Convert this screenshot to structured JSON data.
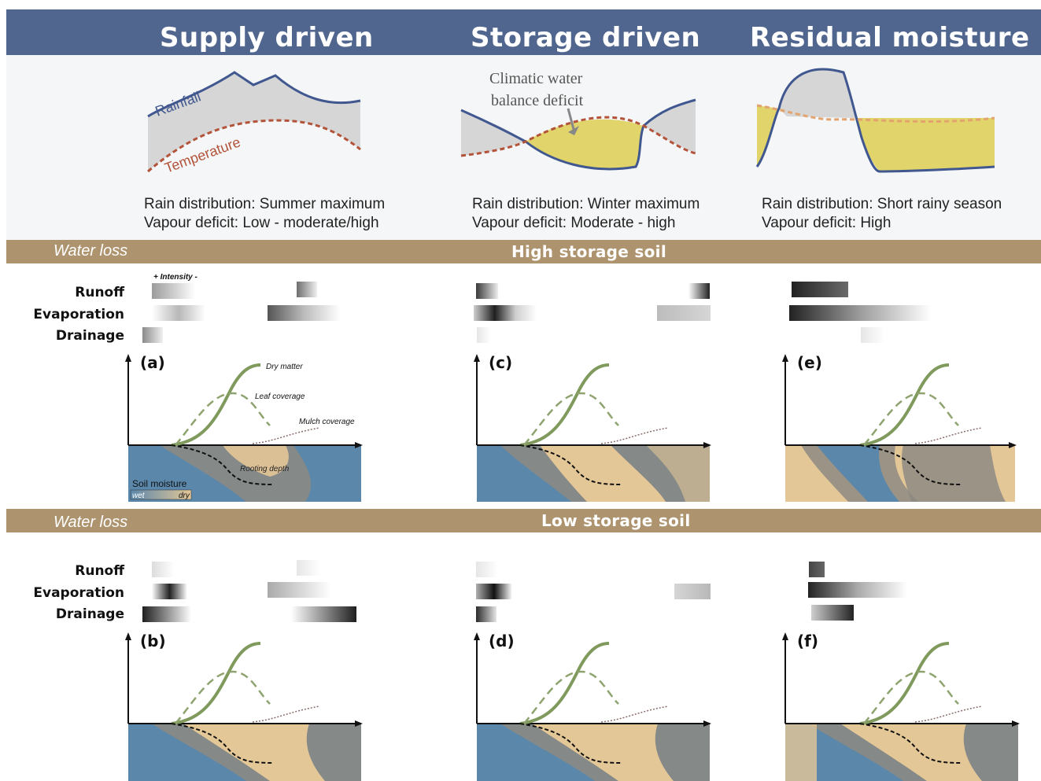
{
  "columns": [
    {
      "id": "supply",
      "title": "Supply driven",
      "rain": "Rain distribution: Summer maximum",
      "vpd": "Vapour deficit: Low - moderate/high"
    },
    {
      "id": "storage",
      "title": "Storage driven",
      "rain": "Rain distribution: Winter maximum",
      "vpd": "Vapour deficit: Moderate  - high"
    },
    {
      "id": "residual",
      "title": "Residual moisture",
      "rain": "Rain distribution: Short rainy season",
      "vpd": "Vapour deficit: High"
    }
  ],
  "climate_labels": {
    "rainfall": "Rainfall",
    "temperature": "Temperature",
    "deficit_line1": "Climatic water",
    "deficit_line2": "balance deficit"
  },
  "bands": {
    "water_loss": "Water loss",
    "high": "High storage soil",
    "low": "Low storage soil"
  },
  "loss_rows": {
    "runoff": "Runoff",
    "evaporation": "Evaporation",
    "drainage": "Drainage"
  },
  "intensity": "+ Intensity -",
  "panel_labels": [
    "(a)",
    "(c)",
    "(e)",
    "(b)",
    "(d)",
    "(f)"
  ],
  "curve_labels": {
    "dry_matter": "Dry matter",
    "leaf": "Leaf coverage",
    "mulch": "Mulch coverage",
    "rooting": "Rooting depth"
  },
  "legend": {
    "title": "Soil moisture",
    "wet": "wet",
    "dry": "dry"
  },
  "colors": {
    "header": "#50668f",
    "band": "#ad946f",
    "rainfall": "#40578f",
    "temperature": "#b2533a",
    "deficit_fill": "#e0d46a",
    "climate_fill": "#d6d6d6",
    "soil_wet": "#5b87aa",
    "soil_dry": "#e4c797",
    "soil_mid": "#8d8a82",
    "dry_matter": "#7f9a5c",
    "leaf": "#8fa36f",
    "mulch": "#8a6b6b"
  }
}
